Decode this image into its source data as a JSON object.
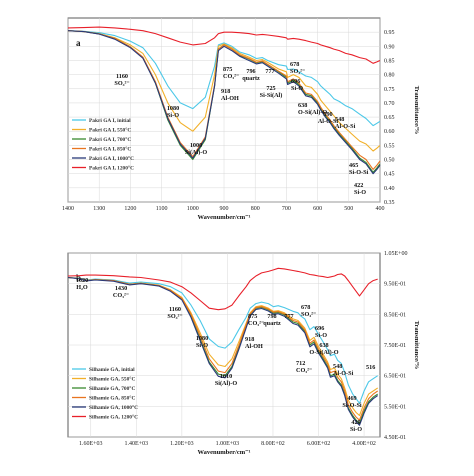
{
  "chart_data": [
    {
      "type": "line",
      "panel_label": "a",
      "xlabel": "Wavenumber/cm⁻¹",
      "ylabel": "Transmittance/%",
      "xlim": [
        1400,
        400
      ],
      "ylim": [
        0.35,
        1.0
      ],
      "x_ticks": [
        1400,
        1300,
        1200,
        1100,
        1000,
        900,
        800,
        700,
        600,
        500,
        400
      ],
      "y_ticks": [
        0.35,
        0.4,
        0.45,
        0.5,
        0.55,
        0.6,
        0.65,
        0.7,
        0.75,
        0.8,
        0.85,
        0.9,
        0.95
      ],
      "grid": true,
      "legend_position": "left",
      "x": [
        1400,
        1350,
        1300,
        1250,
        1200,
        1160,
        1120,
        1080,
        1040,
        1000,
        960,
        930,
        918,
        900,
        875,
        850,
        820,
        796,
        777,
        760,
        725,
        700,
        696,
        678,
        660,
        638,
        620,
        600,
        590,
        575,
        560,
        548,
        530,
        510,
        490,
        465,
        445,
        422,
        410,
        400
      ],
      "series": [
        {
          "name": "Pakri GA I, initial",
          "color": "#4cc8e8",
          "values": [
            0.955,
            0.953,
            0.948,
            0.938,
            0.918,
            0.895,
            0.84,
            0.76,
            0.7,
            0.68,
            0.72,
            0.83,
            0.905,
            0.912,
            0.9,
            0.88,
            0.87,
            0.857,
            0.86,
            0.85,
            0.835,
            0.83,
            0.818,
            0.82,
            0.81,
            0.795,
            0.79,
            0.775,
            0.76,
            0.745,
            0.73,
            0.715,
            0.705,
            0.69,
            0.68,
            0.66,
            0.645,
            0.62,
            0.628,
            0.635
          ]
        },
        {
          "name": "Pakri GA I, 550°C",
          "color": "#f2b02a",
          "values": [
            0.955,
            0.952,
            0.945,
            0.93,
            0.905,
            0.875,
            0.8,
            0.7,
            0.63,
            0.6,
            0.65,
            0.8,
            0.9,
            0.908,
            0.895,
            0.875,
            0.862,
            0.85,
            0.853,
            0.843,
            0.82,
            0.81,
            0.79,
            0.8,
            0.79,
            0.76,
            0.755,
            0.73,
            0.71,
            0.69,
            0.67,
            0.655,
            0.63,
            0.61,
            0.59,
            0.565,
            0.555,
            0.53,
            0.54,
            0.55
          ]
        },
        {
          "name": "Pakri GA I, 700°C",
          "color": "#3a8a30",
          "values": [
            0.955,
            0.952,
            0.944,
            0.928,
            0.898,
            0.86,
            0.77,
            0.64,
            0.55,
            0.5,
            0.57,
            0.76,
            0.89,
            0.905,
            0.89,
            0.868,
            0.855,
            0.842,
            0.846,
            0.835,
            0.81,
            0.79,
            0.77,
            0.78,
            0.765,
            0.73,
            0.725,
            0.7,
            0.68,
            0.655,
            0.635,
            0.615,
            0.59,
            0.565,
            0.54,
            0.505,
            0.49,
            0.455,
            0.47,
            0.485
          ]
        },
        {
          "name": "Pakri GA I, 850°C",
          "color": "#e87520",
          "values": [
            0.955,
            0.952,
            0.944,
            0.928,
            0.898,
            0.862,
            0.775,
            0.65,
            0.56,
            0.51,
            0.58,
            0.765,
            0.89,
            0.905,
            0.89,
            0.87,
            0.857,
            0.844,
            0.848,
            0.836,
            0.812,
            0.795,
            0.775,
            0.785,
            0.77,
            0.735,
            0.73,
            0.705,
            0.685,
            0.66,
            0.64,
            0.62,
            0.595,
            0.57,
            0.545,
            0.515,
            0.5,
            0.465,
            0.48,
            0.495
          ]
        },
        {
          "name": "Pakri GA I, 1000°C",
          "color": "#2a3a7a",
          "values": [
            0.955,
            0.952,
            0.943,
            0.925,
            0.895,
            0.858,
            0.77,
            0.645,
            0.555,
            0.505,
            0.575,
            0.76,
            0.885,
            0.9,
            0.885,
            0.865,
            0.85,
            0.838,
            0.842,
            0.83,
            0.805,
            0.785,
            0.765,
            0.775,
            0.76,
            0.725,
            0.72,
            0.695,
            0.675,
            0.65,
            0.63,
            0.61,
            0.585,
            0.56,
            0.535,
            0.5,
            0.485,
            0.45,
            0.465,
            0.48
          ]
        },
        {
          "name": "Pakri GA I, 1200°C",
          "color": "#e8202a",
          "values": [
            0.965,
            0.966,
            0.968,
            0.965,
            0.96,
            0.955,
            0.945,
            0.93,
            0.915,
            0.905,
            0.91,
            0.93,
            0.945,
            0.95,
            0.95,
            0.948,
            0.945,
            0.94,
            0.942,
            0.94,
            0.935,
            0.93,
            0.925,
            0.928,
            0.925,
            0.92,
            0.915,
            0.91,
            0.905,
            0.9,
            0.895,
            0.89,
            0.885,
            0.875,
            0.87,
            0.86,
            0.855,
            0.84,
            0.845,
            0.85
          ]
        }
      ],
      "annotations": [
        {
          "label": "1160",
          "sub": "SO₄²⁻",
          "x": 1160
        },
        {
          "label": "1080",
          "sub": "Si-O",
          "x": 1080
        },
        {
          "label": "1000",
          "sub": "Si(Al)-O",
          "x": 1000
        },
        {
          "label": "918",
          "sub": "Al-OH",
          "x": 918
        },
        {
          "label": "875",
          "sub": "CO₃²⁻",
          "x": 875
        },
        {
          "label": "796",
          "sub": "quartz",
          "x": 796
        },
        {
          "label": "777",
          "sub": "",
          "x": 777
        },
        {
          "label": "725",
          "sub": "Si-Si(Al)",
          "x": 725
        },
        {
          "label": "696",
          "sub": "Si-O",
          "x": 696
        },
        {
          "label": "678",
          "sub": "SO₄²⁻",
          "x": 678
        },
        {
          "label": "638",
          "sub": "O-Si(Al)-O",
          "x": 638
        },
        {
          "label": "590",
          "sub": "Al-O-Si",
          "x": 590
        },
        {
          "label": "548",
          "sub": "Al-O-Si",
          "x": 548
        },
        {
          "label": "465",
          "sub": "Si-O-Si",
          "x": 465
        },
        {
          "label": "422",
          "sub": "Si-O",
          "x": 422
        }
      ]
    },
    {
      "type": "line",
      "panel_label": "b",
      "xlabel": "Wavenumber/cm⁻¹",
      "ylabel": "Transmittance/%",
      "xlim": [
        1700,
        330
      ],
      "ylim": [
        0.45,
        1.05
      ],
      "x_ticks": [
        1600,
        1400,
        1200,
        1000,
        800,
        600,
        400
      ],
      "x_tick_labels": [
        "1.60E+03",
        "1.40E+03",
        "1.20E+03",
        "1.00E+03",
        "8.00E+02",
        "6.00E+02",
        "4.00E+02"
      ],
      "y_ticks": [
        0.45,
        0.55,
        0.65,
        0.75,
        0.85,
        0.95,
        1.05
      ],
      "y_tick_labels": [
        "4.50E-01",
        "5.50E-01",
        "6.50E-01",
        "7.50E-01",
        "8.50E-01",
        "9.50E-01",
        "1.05E+00"
      ],
      "grid": true,
      "legend_position": "left",
      "x": [
        1700,
        1650,
        1620,
        1580,
        1500,
        1430,
        1380,
        1300,
        1250,
        1200,
        1160,
        1120,
        1080,
        1040,
        1010,
        980,
        950,
        918,
        900,
        875,
        850,
        820,
        798,
        777,
        750,
        712,
        690,
        678,
        660,
        638,
        620,
        600,
        580,
        560,
        548,
        530,
        516,
        500,
        485,
        469,
        450,
        435,
        420,
        400,
        380,
        360,
        340
      ],
      "series": [
        {
          "name": "Silhamie GA, initial",
          "color": "#4cc8e8",
          "values": [
            0.97,
            0.968,
            0.962,
            0.965,
            0.962,
            0.952,
            0.955,
            0.95,
            0.94,
            0.92,
            0.88,
            0.83,
            0.77,
            0.745,
            0.74,
            0.76,
            0.8,
            0.84,
            0.87,
            0.885,
            0.89,
            0.885,
            0.875,
            0.878,
            0.872,
            0.86,
            0.855,
            0.845,
            0.835,
            0.8,
            0.81,
            0.785,
            0.76,
            0.735,
            0.715,
            0.72,
            0.7,
            0.69,
            0.66,
            0.62,
            0.59,
            0.575,
            0.56,
            0.6,
            0.63,
            0.64,
            0.65
          ]
        },
        {
          "name": "Silhamie GA, 550°C",
          "color": "#f2b02a",
          "values": [
            0.97,
            0.967,
            0.96,
            0.963,
            0.96,
            0.948,
            0.952,
            0.945,
            0.93,
            0.905,
            0.855,
            0.79,
            0.72,
            0.685,
            0.68,
            0.705,
            0.76,
            0.82,
            0.855,
            0.875,
            0.878,
            0.87,
            0.86,
            0.862,
            0.855,
            0.835,
            0.83,
            0.82,
            0.805,
            0.765,
            0.775,
            0.745,
            0.72,
            0.695,
            0.67,
            0.675,
            0.655,
            0.64,
            0.61,
            0.57,
            0.545,
            0.53,
            0.52,
            0.56,
            0.59,
            0.6,
            0.61
          ]
        },
        {
          "name": "Silhamie GA, 700°C",
          "color": "#3a8a30",
          "values": [
            0.97,
            0.967,
            0.96,
            0.963,
            0.96,
            0.948,
            0.951,
            0.944,
            0.928,
            0.9,
            0.845,
            0.77,
            0.695,
            0.655,
            0.65,
            0.68,
            0.74,
            0.81,
            0.85,
            0.87,
            0.873,
            0.865,
            0.854,
            0.856,
            0.848,
            0.825,
            0.82,
            0.81,
            0.795,
            0.75,
            0.76,
            0.73,
            0.705,
            0.68,
            0.65,
            0.655,
            0.635,
            0.62,
            0.59,
            0.545,
            0.52,
            0.505,
            0.495,
            0.535,
            0.565,
            0.58,
            0.59
          ]
        },
        {
          "name": "Silhamie GA, 850°C",
          "color": "#e87520",
          "values": [
            0.97,
            0.967,
            0.96,
            0.963,
            0.96,
            0.948,
            0.951,
            0.944,
            0.928,
            0.902,
            0.85,
            0.78,
            0.705,
            0.665,
            0.66,
            0.69,
            0.748,
            0.815,
            0.852,
            0.872,
            0.875,
            0.867,
            0.857,
            0.859,
            0.851,
            0.83,
            0.825,
            0.815,
            0.8,
            0.756,
            0.766,
            0.736,
            0.712,
            0.688,
            0.66,
            0.665,
            0.645,
            0.63,
            0.6,
            0.555,
            0.53,
            0.515,
            0.505,
            0.545,
            0.575,
            0.59,
            0.6
          ]
        },
        {
          "name": "Silhamie GA, 1000°C",
          "color": "#2a3a7a",
          "values": [
            0.97,
            0.966,
            0.959,
            0.962,
            0.958,
            0.946,
            0.95,
            0.942,
            0.925,
            0.897,
            0.84,
            0.765,
            0.69,
            0.648,
            0.643,
            0.675,
            0.735,
            0.805,
            0.845,
            0.866,
            0.869,
            0.861,
            0.85,
            0.852,
            0.844,
            0.82,
            0.815,
            0.805,
            0.79,
            0.744,
            0.754,
            0.724,
            0.7,
            0.675,
            0.645,
            0.65,
            0.63,
            0.615,
            0.585,
            0.54,
            0.515,
            0.5,
            0.488,
            0.528,
            0.56,
            0.575,
            0.585
          ]
        },
        {
          "name": "Silhamie GA, 1200°C",
          "color": "#e8202a",
          "values": [
            0.975,
            0.976,
            0.978,
            0.978,
            0.976,
            0.972,
            0.97,
            0.962,
            0.955,
            0.94,
            0.92,
            0.895,
            0.87,
            0.865,
            0.868,
            0.88,
            0.91,
            0.94,
            0.96,
            0.975,
            0.985,
            0.99,
            0.995,
            1.0,
            0.998,
            0.993,
            0.99,
            0.988,
            0.985,
            0.98,
            0.978,
            0.975,
            0.973,
            0.97,
            0.972,
            0.975,
            0.98,
            0.982,
            0.975,
            0.96,
            0.94,
            0.925,
            0.91,
            0.93,
            0.95,
            0.96,
            0.965
          ]
        }
      ],
      "annotations": [
        {
          "label": "1620",
          "sub": "H₂O",
          "x": 1620
        },
        {
          "label": "1430",
          "sub": "CO₃²⁻",
          "x": 1430
        },
        {
          "label": "1160",
          "sub": "SO₄²⁻",
          "x": 1160
        },
        {
          "label": "1080",
          "sub": "Si-O",
          "x": 1080
        },
        {
          "label": "1010",
          "sub": "Si(Al)-O",
          "x": 1010
        },
        {
          "label": "918",
          "sub": "Al-OH",
          "x": 918
        },
        {
          "label": "875",
          "sub": "CO₃²⁻",
          "x": 875
        },
        {
          "label": "798",
          "sub": "quartz",
          "x": 798
        },
        {
          "label": "777",
          "sub": "",
          "x": 777
        },
        {
          "label": "712",
          "sub": "CO₃²⁻",
          "x": 712
        },
        {
          "label": "696",
          "sub": "Si-O",
          "x": 696
        },
        {
          "label": "678",
          "sub": "SO₄²⁻",
          "x": 678
        },
        {
          "label": "638",
          "sub": "O-Si(Al)-O",
          "x": 638
        },
        {
          "label": "548",
          "sub": "Al-O-Si",
          "x": 548
        },
        {
          "label": "516",
          "sub": "",
          "x": 516
        },
        {
          "label": "469",
          "sub": "Si-O-Si",
          "x": 469
        },
        {
          "label": "420",
          "sub": "Si-O",
          "x": 420
        }
      ]
    }
  ]
}
